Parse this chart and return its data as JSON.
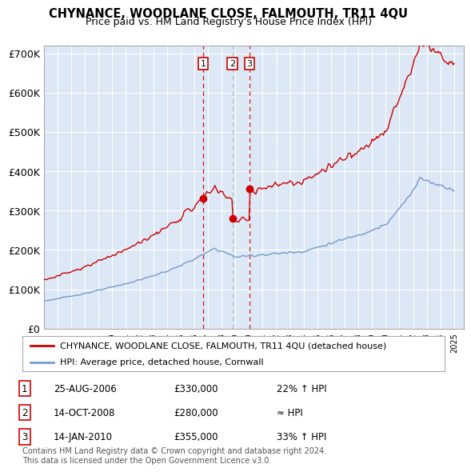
{
  "title": "CHYNANCE, WOODLANE CLOSE, FALMOUTH, TR11 4QU",
  "subtitle": "Price paid vs. HM Land Registry's House Price Index (HPI)",
  "ylabel_ticks": [
    "£0",
    "£100K",
    "£200K",
    "£300K",
    "£400K",
    "£500K",
    "£600K",
    "£700K"
  ],
  "ytick_values": [
    0,
    100000,
    200000,
    300000,
    400000,
    500000,
    600000,
    700000
  ],
  "ylim": [
    0,
    720000
  ],
  "xlim_start": 1995.3,
  "xlim_end": 2025.7,
  "xtick_years": [
    1995,
    1996,
    1997,
    1998,
    1999,
    2000,
    2001,
    2002,
    2003,
    2004,
    2005,
    2006,
    2007,
    2008,
    2009,
    2010,
    2011,
    2012,
    2013,
    2014,
    2015,
    2016,
    2017,
    2018,
    2019,
    2020,
    2021,
    2022,
    2023,
    2024,
    2025
  ],
  "red_color": "#cc0000",
  "blue_color": "#7799cc",
  "chart_bg_color": "#dce8f5",
  "background_color": "#ffffff",
  "grid_color": "#ffffff",
  "vline1_color": "#cc0000",
  "vline2_color": "#aabbcc",
  "vline3_color": "#cc0000",
  "sale_box_color": "#cc0000",
  "transactions": [
    {
      "number": 1,
      "year": 2006.65,
      "price": 330000
    },
    {
      "number": 2,
      "year": 2008.79,
      "price": 280000
    },
    {
      "number": 3,
      "year": 2010.04,
      "price": 355000
    }
  ],
  "legend_entries": [
    "CHYNANCE, WOODLANE CLOSE, FALMOUTH, TR11 4QU (detached house)",
    "HPI: Average price, detached house, Cornwall"
  ],
  "table_rows": [
    {
      "num": "1",
      "date": "25-AUG-2006",
      "price": "£330,000",
      "change": "22% ↑ HPI"
    },
    {
      "num": "2",
      "date": "14-OCT-2008",
      "price": "£280,000",
      "change": "≈ HPI"
    },
    {
      "num": "3",
      "date": "14-JAN-2010",
      "price": "£355,000",
      "change": "33% ↑ HPI"
    }
  ],
  "footnote": "Contains HM Land Registry data © Crown copyright and database right 2024.\nThis data is licensed under the Open Government Licence v3.0."
}
